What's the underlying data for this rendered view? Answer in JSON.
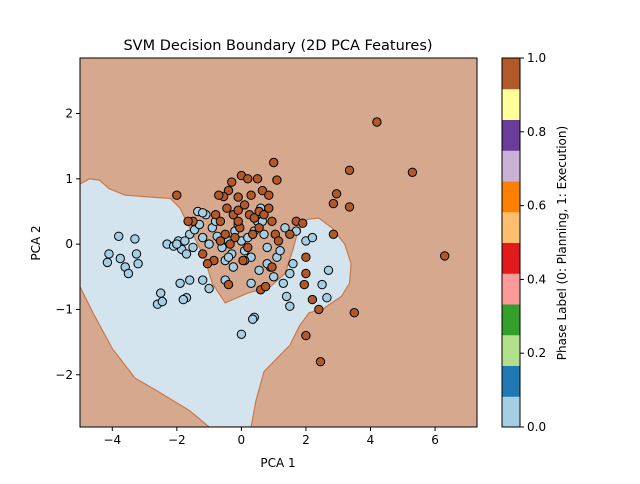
{
  "chart_data": {
    "type": "scatter",
    "title": "SVM Decision Boundary (2D PCA Features)",
    "xlabel": "PCA 1",
    "ylabel": "PCA 2",
    "xlim": [
      -5.0,
      7.3
    ],
    "ylim": [
      -2.8,
      2.85
    ],
    "xticks": [
      -4,
      -2,
      0,
      2,
      4,
      6
    ],
    "yticks": [
      -2,
      -1,
      0,
      1,
      2
    ],
    "xtick_labels": [
      "−4",
      "−2",
      "0",
      "2",
      "4",
      "6"
    ],
    "ytick_labels": [
      "−2",
      "−1",
      "0",
      "1",
      "2"
    ],
    "grid": false,
    "background_region": {
      "class": 1,
      "color": "#d6a98f"
    },
    "decision_region_class0": {
      "class": 0,
      "color": "#d3e4ef",
      "boundary_color": "#c9784a",
      "polygon": [
        [
          -5.0,
          0.92
        ],
        [
          -4.7,
          1.0
        ],
        [
          -4.4,
          0.98
        ],
        [
          -4.1,
          0.85
        ],
        [
          -3.6,
          0.75
        ],
        [
          -2.8,
          0.72
        ],
        [
          -2.2,
          0.7
        ],
        [
          -1.9,
          0.55
        ],
        [
          -1.7,
          0.35
        ],
        [
          -1.4,
          0.05
        ],
        [
          -1.15,
          -0.2
        ],
        [
          -0.9,
          -0.6
        ],
        [
          -0.5,
          -0.9
        ],
        [
          0.2,
          -0.75
        ],
        [
          0.9,
          -0.65
        ],
        [
          1.35,
          -0.45
        ],
        [
          1.6,
          -0.08
        ],
        [
          1.75,
          0.2
        ],
        [
          2.05,
          0.38
        ],
        [
          2.4,
          0.4
        ],
        [
          2.8,
          0.25
        ],
        [
          3.2,
          0.0
        ],
        [
          3.4,
          -0.3
        ],
        [
          3.35,
          -0.6
        ],
        [
          3.1,
          -0.8
        ],
        [
          2.5,
          -1.0
        ],
        [
          2.1,
          -1.05
        ],
        [
          1.8,
          -1.25
        ],
        [
          1.5,
          -1.55
        ],
        [
          1.1,
          -1.75
        ],
        [
          0.7,
          -1.95
        ],
        [
          0.45,
          -2.4
        ],
        [
          0.3,
          -2.8
        ],
        [
          -1.0,
          -2.8
        ],
        [
          -1.6,
          -2.55
        ],
        [
          -2.6,
          -2.25
        ],
        [
          -3.3,
          -2.05
        ],
        [
          -4.0,
          -1.6
        ],
        [
          -4.6,
          -1.05
        ],
        [
          -5.0,
          -0.65
        ]
      ]
    },
    "colorbar": {
      "label": "Phase Label (0: Planning, 1: Execution)",
      "range": [
        0.0,
        1.0
      ],
      "ticks": [
        0.0,
        0.2,
        0.4,
        0.6,
        0.8,
        1.0
      ],
      "tick_labels": [
        "0.0",
        "0.2",
        "0.4",
        "0.6",
        "0.8",
        "1.0"
      ],
      "colors": [
        "#a6cee3",
        "#1f78b4",
        "#b2df8a",
        "#33a02c",
        "#fb9a99",
        "#e31a1c",
        "#fdbf6f",
        "#ff7f00",
        "#cab2d6",
        "#6a3d9a",
        "#ffff99",
        "#b15928"
      ]
    },
    "series": [
      {
        "label": "0: Planning",
        "color": "#a6cee3",
        "points": [
          [
            -3.8,
            0.12
          ],
          [
            -4.1,
            -0.15
          ],
          [
            -4.15,
            -0.28
          ],
          [
            -3.75,
            -0.22
          ],
          [
            -3.6,
            -0.35
          ],
          [
            -3.5,
            -0.45
          ],
          [
            -3.3,
            0.08
          ],
          [
            -3.25,
            -0.15
          ],
          [
            -3.2,
            -0.3
          ],
          [
            -2.6,
            -0.92
          ],
          [
            -2.5,
            -0.75
          ],
          [
            -2.45,
            -0.88
          ],
          [
            -2.3,
            0.0
          ],
          [
            -2.1,
            -0.03
          ],
          [
            -1.95,
            0.05
          ],
          [
            -1.85,
            -0.08
          ],
          [
            -1.7,
            -0.15
          ],
          [
            -1.6,
            0.15
          ],
          [
            -1.5,
            -0.05
          ],
          [
            -1.45,
            0.22
          ],
          [
            -1.3,
            0.3
          ],
          [
            -1.2,
            0.1
          ],
          [
            -1.1,
            0.45
          ],
          [
            -1.0,
            0.0
          ],
          [
            -0.9,
            0.25
          ],
          [
            -0.8,
            0.35
          ],
          [
            -0.7,
            0.1
          ],
          [
            -0.6,
            -0.05
          ],
          [
            -0.5,
            -0.25
          ],
          [
            -0.4,
            0.05
          ],
          [
            -0.3,
            -0.15
          ],
          [
            -0.2,
            0.2
          ],
          [
            -0.1,
            0.3
          ],
          [
            0.0,
            0.05
          ],
          [
            0.1,
            -0.1
          ],
          [
            0.2,
            0.1
          ],
          [
            0.3,
            -0.2
          ],
          [
            0.4,
            0.2
          ],
          [
            0.5,
            0.35
          ],
          [
            0.6,
            0.55
          ],
          [
            0.7,
            0.15
          ],
          [
            0.8,
            -0.05
          ],
          [
            0.9,
            -0.35
          ],
          [
            1.0,
            -0.5
          ],
          [
            1.1,
            -0.2
          ],
          [
            1.2,
            -0.1
          ],
          [
            1.3,
            -0.6
          ],
          [
            1.4,
            -0.8
          ],
          [
            1.5,
            -0.45
          ],
          [
            1.6,
            -0.3
          ],
          [
            1.7,
            0.2
          ],
          [
            2.0,
            0.05
          ],
          [
            2.2,
            0.1
          ],
          [
            2.7,
            -0.4
          ],
          [
            -1.2,
            -0.55
          ],
          [
            -1.0,
            -0.68
          ],
          [
            -1.6,
            -0.55
          ],
          [
            -1.7,
            -0.82
          ],
          [
            -1.8,
            -0.85
          ],
          [
            -1.9,
            -0.6
          ],
          [
            0.0,
            -1.38
          ],
          [
            0.3,
            -0.6
          ],
          [
            0.4,
            -1.12
          ],
          [
            0.35,
            -1.15
          ],
          [
            0.8,
            -0.3
          ],
          [
            2.5,
            -0.62
          ],
          [
            2.65,
            -0.82
          ],
          [
            -0.5,
            -0.55
          ],
          [
            -0.25,
            -0.35
          ],
          [
            0.1,
            -0.25
          ],
          [
            0.55,
            -0.4
          ],
          [
            0.65,
            0.35
          ],
          [
            -1.35,
            0.5
          ],
          [
            -1.2,
            0.48
          ],
          [
            -0.75,
            0.12
          ],
          [
            -2.0,
            0.0
          ],
          [
            -1.75,
            0.05
          ],
          [
            -0.4,
            -0.2
          ],
          [
            1.35,
            0.25
          ],
          [
            1.5,
            -0.95
          ]
        ]
      },
      {
        "label": "1: Execution",
        "color": "#b15928",
        "points": [
          [
            4.2,
            1.87
          ],
          [
            5.3,
            1.1
          ],
          [
            6.3,
            -0.18
          ],
          [
            3.35,
            1.13
          ],
          [
            2.95,
            0.77
          ],
          [
            2.85,
            0.62
          ],
          [
            3.35,
            0.57
          ],
          [
            2.85,
            0.15
          ],
          [
            1.0,
            1.25
          ],
          [
            1.1,
            0.98
          ],
          [
            0.0,
            1.05
          ],
          [
            0.65,
            0.82
          ],
          [
            0.85,
            0.75
          ],
          [
            -0.1,
            0.72
          ],
          [
            -0.3,
            0.95
          ],
          [
            -0.4,
            0.82
          ],
          [
            -0.55,
            0.73
          ],
          [
            -0.7,
            0.75
          ],
          [
            -0.8,
            0.45
          ],
          [
            -0.65,
            0.35
          ],
          [
            -0.45,
            0.55
          ],
          [
            -0.25,
            0.45
          ],
          [
            -0.1,
            0.52
          ],
          [
            0.1,
            0.6
          ],
          [
            0.25,
            0.45
          ],
          [
            0.4,
            0.4
          ],
          [
            0.55,
            0.5
          ],
          [
            0.7,
            0.45
          ],
          [
            0.85,
            0.55
          ],
          [
            0.95,
            0.35
          ],
          [
            1.05,
            0.15
          ],
          [
            1.15,
            0.05
          ],
          [
            0.55,
            0.25
          ],
          [
            0.35,
            0.15
          ],
          [
            0.2,
            -0.05
          ],
          [
            0.05,
            -0.25
          ],
          [
            -0.05,
            0.25
          ],
          [
            -0.2,
            0.1
          ],
          [
            -0.35,
            0.0
          ],
          [
            -0.5,
            0.15
          ],
          [
            -0.65,
            0.05
          ],
          [
            -0.85,
            -0.25
          ],
          [
            -1.05,
            -0.3
          ],
          [
            -1.2,
            -0.15
          ],
          [
            -1.5,
            0.35
          ],
          [
            -1.65,
            0.35
          ],
          [
            -2.0,
            0.75
          ],
          [
            -0.4,
            -0.62
          ],
          [
            0.6,
            -0.7
          ],
          [
            0.75,
            -0.65
          ],
          [
            0.95,
            -0.35
          ],
          [
            1.5,
            0.15
          ],
          [
            1.7,
            0.35
          ],
          [
            1.9,
            0.32
          ],
          [
            2.0,
            -0.2
          ],
          [
            2.0,
            -0.45
          ],
          [
            1.95,
            -0.62
          ],
          [
            2.2,
            -0.85
          ],
          [
            2.4,
            -1.0
          ],
          [
            2.0,
            -1.4
          ],
          [
            2.45,
            -1.8
          ],
          [
            3.5,
            -1.05
          ],
          [
            -0.1,
            0.35
          ],
          [
            0.3,
            0.75
          ],
          [
            0.5,
            1.0
          ],
          [
            0.2,
            1.0
          ]
        ]
      }
    ]
  }
}
